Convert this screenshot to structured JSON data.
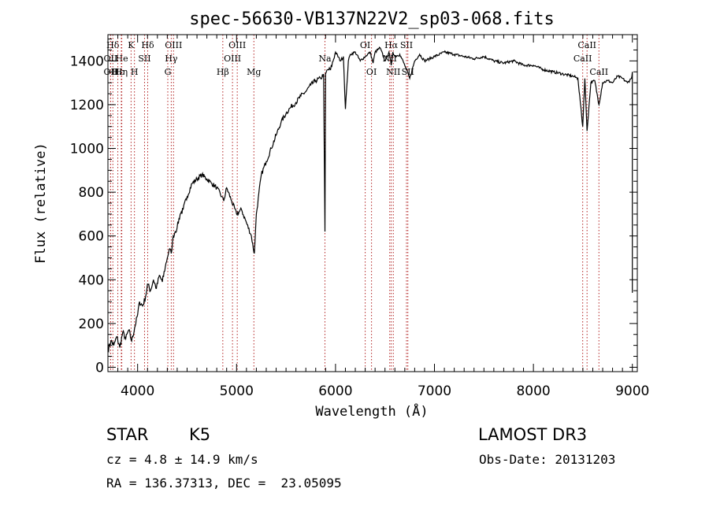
{
  "chart_data": {
    "type": "line",
    "title": "spec-56630-VB137N22V2_sp03-068.fits",
    "xlabel": "Wavelength (Å)",
    "ylabel": "Flux (relative)",
    "xlim": [
      3700,
      9050
    ],
    "ylim": [
      -20,
      1520
    ],
    "xticks": [
      4000,
      5000,
      6000,
      7000,
      8000,
      9000
    ],
    "yticks": [
      0,
      200,
      400,
      600,
      800,
      1000,
      1200,
      1400
    ],
    "spectrum": {
      "x": [
        3700,
        3730,
        3760,
        3790,
        3820,
        3850,
        3880,
        3910,
        3940,
        3970,
        4000,
        4020,
        4050,
        4080,
        4100,
        4130,
        4160,
        4190,
        4220,
        4250,
        4280,
        4300,
        4320,
        4340,
        4360,
        4380,
        4400,
        4430,
        4460,
        4500,
        4550,
        4600,
        4650,
        4700,
        4750,
        4800,
        4850,
        4870,
        4900,
        4950,
        5000,
        5050,
        5100,
        5150,
        5170,
        5180,
        5200,
        5250,
        5300,
        5350,
        5400,
        5450,
        5500,
        5550,
        5600,
        5650,
        5700,
        5750,
        5800,
        5850,
        5880,
        5893,
        5900,
        5920,
        5950,
        6000,
        6050,
        6080,
        6100,
        6130,
        6150,
        6200,
        6250,
        6300,
        6350,
        6380,
        6400,
        6450,
        6500,
        6540,
        6563,
        6580,
        6600,
        6650,
        6700,
        6750,
        6800,
        6850,
        6900,
        6950,
        7000,
        7100,
        7200,
        7300,
        7400,
        7500,
        7600,
        7700,
        7800,
        7900,
        8000,
        8100,
        8200,
        8300,
        8400,
        8450,
        8498,
        8520,
        8542,
        8580,
        8620,
        8662,
        8700,
        8750,
        8800,
        8850,
        8900,
        8950,
        8990,
        9000
      ],
      "y": [
        80,
        120,
        100,
        140,
        90,
        160,
        130,
        170,
        120,
        180,
        240,
        300,
        280,
        320,
        380,
        350,
        400,
        360,
        420,
        390,
        460,
        500,
        540,
        520,
        600,
        620,
        640,
        700,
        720,
        780,
        840,
        860,
        880,
        860,
        840,
        820,
        780,
        760,
        820,
        760,
        700,
        720,
        660,
        600,
        540,
        520,
        700,
        880,
        940,
        1000,
        1060,
        1120,
        1160,
        1190,
        1210,
        1240,
        1260,
        1290,
        1310,
        1320,
        1340,
        620,
        1340,
        1360,
        1360,
        1440,
        1400,
        1420,
        1180,
        1400,
        1430,
        1440,
        1400,
        1420,
        1440,
        1390,
        1440,
        1460,
        1400,
        1440,
        1380,
        1440,
        1420,
        1430,
        1380,
        1320,
        1400,
        1430,
        1400,
        1410,
        1420,
        1440,
        1430,
        1420,
        1410,
        1420,
        1400,
        1390,
        1400,
        1380,
        1380,
        1360,
        1350,
        1340,
        1330,
        1320,
        1100,
        1320,
        1080,
        1300,
        1310,
        1200,
        1300,
        1310,
        1300,
        1330,
        1320,
        1300,
        1320,
        1350
      ],
      "end_drop": {
        "x": 9000,
        "y": 340
      }
    },
    "emission_lines": [
      {
        "label": "Hδ",
        "wavelength": 3750,
        "row": 1
      },
      {
        "label": "OII",
        "wavelength": 3727,
        "row": 2
      },
      {
        "label": "OII",
        "wavelength": 3727,
        "row": 3
      },
      {
        "label": "Hε",
        "wavelength": 3800,
        "row": 3
      },
      {
        "label": "He",
        "wavelength": 3840,
        "row": 2
      },
      {
        "label": "Hη",
        "wavelength": 3835,
        "row": 3
      },
      {
        "label": "K",
        "wavelength": 3934,
        "row": 1
      },
      {
        "label": "H",
        "wavelength": 3968,
        "row": 3
      },
      {
        "label": "SII",
        "wavelength": 4070,
        "row": 2
      },
      {
        "label": "Hδ",
        "wavelength": 4102,
        "row": 1
      },
      {
        "label": "OIII",
        "wavelength": 4363,
        "row": 1
      },
      {
        "label": "Hγ",
        "wavelength": 4340,
        "row": 2
      },
      {
        "label": "G",
        "wavelength": 4305,
        "row": 3
      },
      {
        "label": "Hβ",
        "wavelength": 4861,
        "row": 3
      },
      {
        "label": "OIII",
        "wavelength": 5007,
        "row": 1
      },
      {
        "label": "OIII",
        "wavelength": 4959,
        "row": 2
      },
      {
        "label": "Mg",
        "wavelength": 5175,
        "row": 3
      },
      {
        "label": "Na",
        "wavelength": 5893,
        "row": 2
      },
      {
        "label": "OI",
        "wavelength": 6300,
        "row": 1
      },
      {
        "label": "OI",
        "wavelength": 6364,
        "row": 3
      },
      {
        "label": "Hα",
        "wavelength": 6563,
        "row": 1
      },
      {
        "label": "NII",
        "wavelength": 6548,
        "row": 2
      },
      {
        "label": "NII",
        "wavelength": 6584,
        "row": 3
      },
      {
        "label": "SII",
        "wavelength": 6717,
        "row": 1
      },
      {
        "label": "SII",
        "wavelength": 6731,
        "row": 3
      },
      {
        "label": "CaII",
        "wavelength": 8542,
        "row": 1
      },
      {
        "label": "CaII",
        "wavelength": 8498,
        "row": 2
      },
      {
        "label": "CaII",
        "wavelength": 8662,
        "row": 3
      }
    ]
  },
  "info": {
    "class": "STAR",
    "subclass": "K5",
    "survey": "LAMOST DR3",
    "redshift": "cz = 4.8 ± 14.9 km/s",
    "obs_date": "Obs-Date: 20131203",
    "coords": "RA = 136.37313, DEC =  23.05095"
  }
}
